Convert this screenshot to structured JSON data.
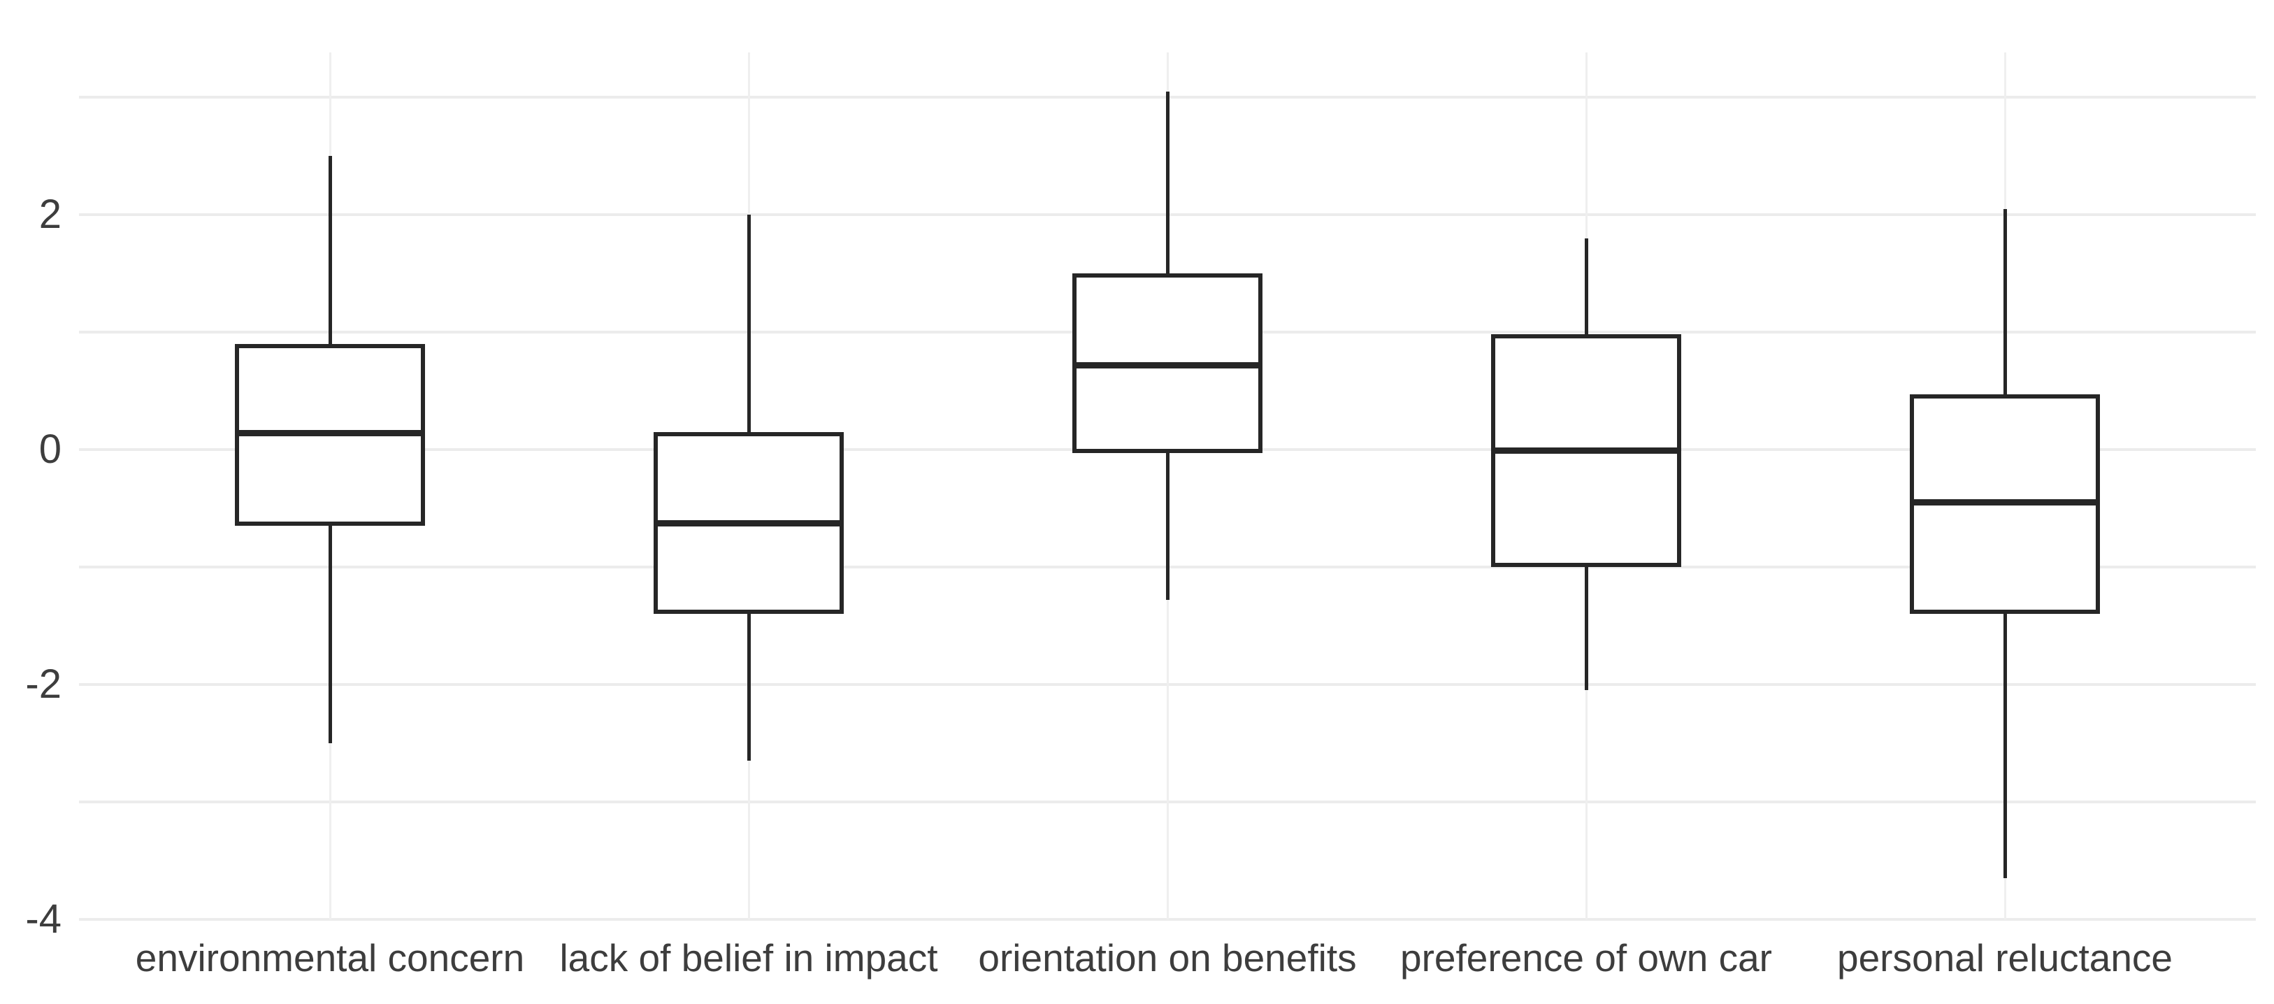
{
  "chart_data": {
    "type": "boxplot",
    "title": "",
    "xlabel": "",
    "ylabel": "",
    "legend_position": "none",
    "grid": "on",
    "categories": [
      "environmental concern",
      "lack of belief in impact",
      "orientation on benefits",
      "preference of own car",
      "personal reluctance"
    ],
    "series": [
      {
        "name": "environmental concern",
        "whisker_low": -2.5,
        "q1": -0.65,
        "median": 0.14,
        "q3": 0.9,
        "whisker_high": 2.5
      },
      {
        "name": "lack of belief in impact",
        "whisker_low": -2.65,
        "q1": -1.4,
        "median": -0.63,
        "q3": 0.15,
        "whisker_high": 2.0
      },
      {
        "name": "orientation on benefits",
        "whisker_low": -1.28,
        "q1": -0.03,
        "median": 0.72,
        "q3": 1.5,
        "whisker_high": 3.05
      },
      {
        "name": "preference of own car",
        "whisker_low": -2.05,
        "q1": -1.0,
        "median": -0.01,
        "q3": 0.98,
        "whisker_high": 1.8
      },
      {
        "name": "personal reluctance",
        "whisker_low": -3.65,
        "q1": -1.4,
        "median": -0.45,
        "q3": 0.47,
        "whisker_high": 2.05
      }
    ],
    "y_axis": {
      "tick_labels": [
        "2",
        "0",
        "-2",
        "-4"
      ],
      "tick_values": [
        2,
        0,
        -2,
        -4
      ],
      "gridline_values": [
        3,
        2,
        1,
        0,
        -1,
        -2,
        -3,
        -4
      ],
      "ylim": [
        -4.0,
        3.38
      ]
    },
    "colors": {
      "background": "#ffffff",
      "gridline": "#ececec",
      "box_stroke": "#262626",
      "box_fill": "#ffffff",
      "text": "#3d3d3d"
    }
  }
}
